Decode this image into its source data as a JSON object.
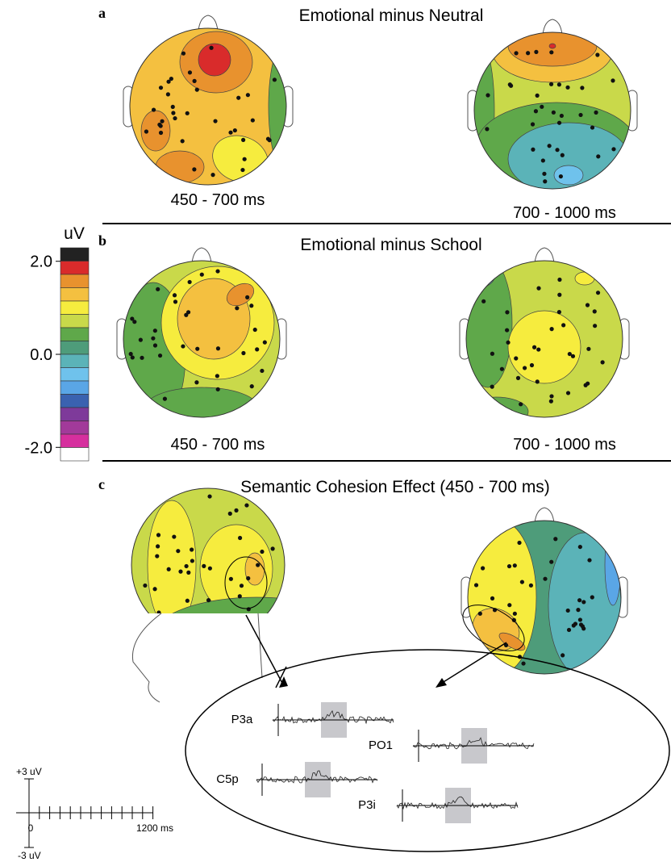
{
  "panels": [
    {
      "label": "a",
      "title": "Emotional minus Neutral",
      "maps": [
        "450 - 700 ms",
        "700 - 1000 ms"
      ]
    },
    {
      "label": "b",
      "title": "Emotional minus School",
      "maps": [
        "450 - 700 ms",
        "700 - 1000 ms"
      ]
    },
    {
      "label": "c",
      "title": "Semantic Cohesion Effect (450 - 700 ms)"
    }
  ],
  "colorbar": {
    "unit": "uV",
    "lim": [
      -2.29,
      2.29
    ],
    "ticks": [
      {
        "value": 2,
        "label": "2.0"
      },
      {
        "value": 0,
        "label": "0.0"
      },
      {
        "value": -2,
        "label": "-2.0"
      }
    ],
    "colors": [
      "#222222",
      "#d92b2b",
      "#e8922e",
      "#f4c040",
      "#f6ec3e",
      "#c9d94a",
      "#5fa84a",
      "#4e9c7a",
      "#5bb3b8",
      "#6fc2ec",
      "#5aa6e6",
      "#3a62b0",
      "#7e3a9a",
      "#a23a9a",
      "#d62f9e",
      "#ffffff"
    ]
  },
  "waveforms": [
    "P3a",
    "PO1",
    "C5p",
    "P3i"
  ],
  "scale_bar": {
    "top": "+3 uV",
    "bottom": "-3 uV",
    "start": "0",
    "end": "1200 ms"
  }
}
